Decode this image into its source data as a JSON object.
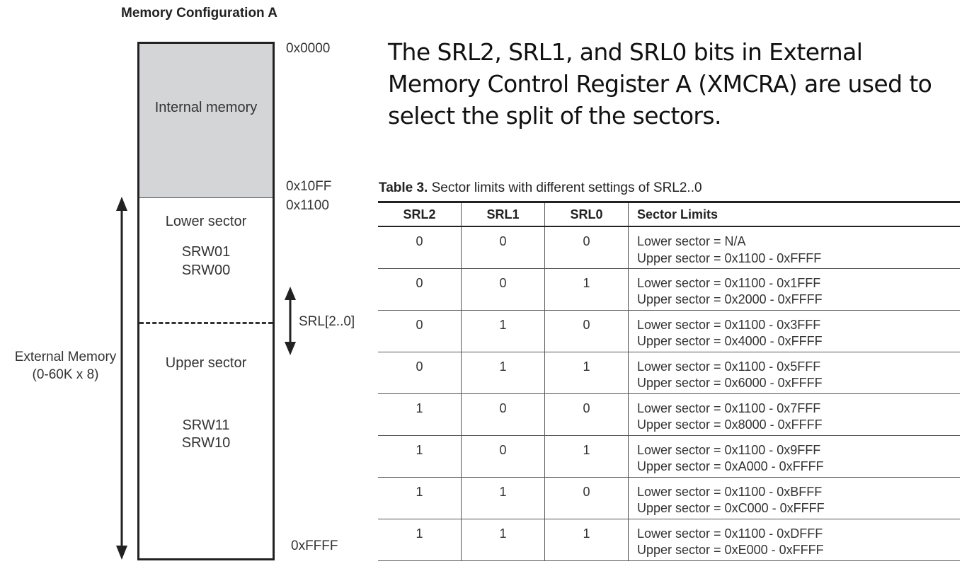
{
  "diagram": {
    "title": "Memory Configuration A",
    "regions": {
      "internal": "Internal memory",
      "lower": {
        "name": "Lower sector",
        "line1": "SRW01",
        "line2": "SRW00"
      },
      "upper": {
        "name": "Upper sector",
        "line1": "SRW11",
        "line2": "SRW10"
      }
    },
    "addresses": {
      "start": "0x0000",
      "internal_end": "0x10FF",
      "external_start": "0x1100",
      "end": "0xFFFF"
    },
    "external_label": {
      "line1": "External Memory",
      "line2": "(0-60K x 8)"
    },
    "srl_label": "SRL[2..0]"
  },
  "headline": "The SRL2, SRL1, and SRL0 bits in External Memory Control Register A (XMCRA) are used to select the split of the sectors.",
  "table": {
    "caption_label": "Table 3.",
    "caption_text": "Sector limits with different settings of SRL2..0",
    "headers": [
      "SRL2",
      "SRL1",
      "SRL0",
      "Sector Limits"
    ],
    "rows": [
      {
        "srl2": "0",
        "srl1": "0",
        "srl0": "0",
        "lower": "Lower sector = N/A",
        "upper": "Upper sector = 0x1100 - 0xFFFF"
      },
      {
        "srl2": "0",
        "srl1": "0",
        "srl0": "1",
        "lower": "Lower sector = 0x1100 - 0x1FFF",
        "upper": "Upper sector = 0x2000 - 0xFFFF"
      },
      {
        "srl2": "0",
        "srl1": "1",
        "srl0": "0",
        "lower": "Lower sector = 0x1100 - 0x3FFF",
        "upper": "Upper sector = 0x4000 - 0xFFFF"
      },
      {
        "srl2": "0",
        "srl1": "1",
        "srl0": "1",
        "lower": "Lower sector = 0x1100 - 0x5FFF",
        "upper": "Upper sector = 0x6000 - 0xFFFF"
      },
      {
        "srl2": "1",
        "srl1": "0",
        "srl0": "0",
        "lower": "Lower sector = 0x1100 - 0x7FFF",
        "upper": "Upper sector = 0x8000 - 0xFFFF"
      },
      {
        "srl2": "1",
        "srl1": "0",
        "srl0": "1",
        "lower": "Lower sector = 0x1100 - 0x9FFF",
        "upper": "Upper sector = 0xA000 - 0xFFFF"
      },
      {
        "srl2": "1",
        "srl1": "1",
        "srl0": "0",
        "lower": "Lower sector = 0x1100 - 0xBFFF",
        "upper": "Upper sector = 0xC000 - 0xFFFF"
      },
      {
        "srl2": "1",
        "srl1": "1",
        "srl0": "1",
        "lower": "Lower sector = 0x1100 - 0xDFFF",
        "upper": "Upper sector = 0xE000 - 0xFFFF"
      }
    ]
  }
}
